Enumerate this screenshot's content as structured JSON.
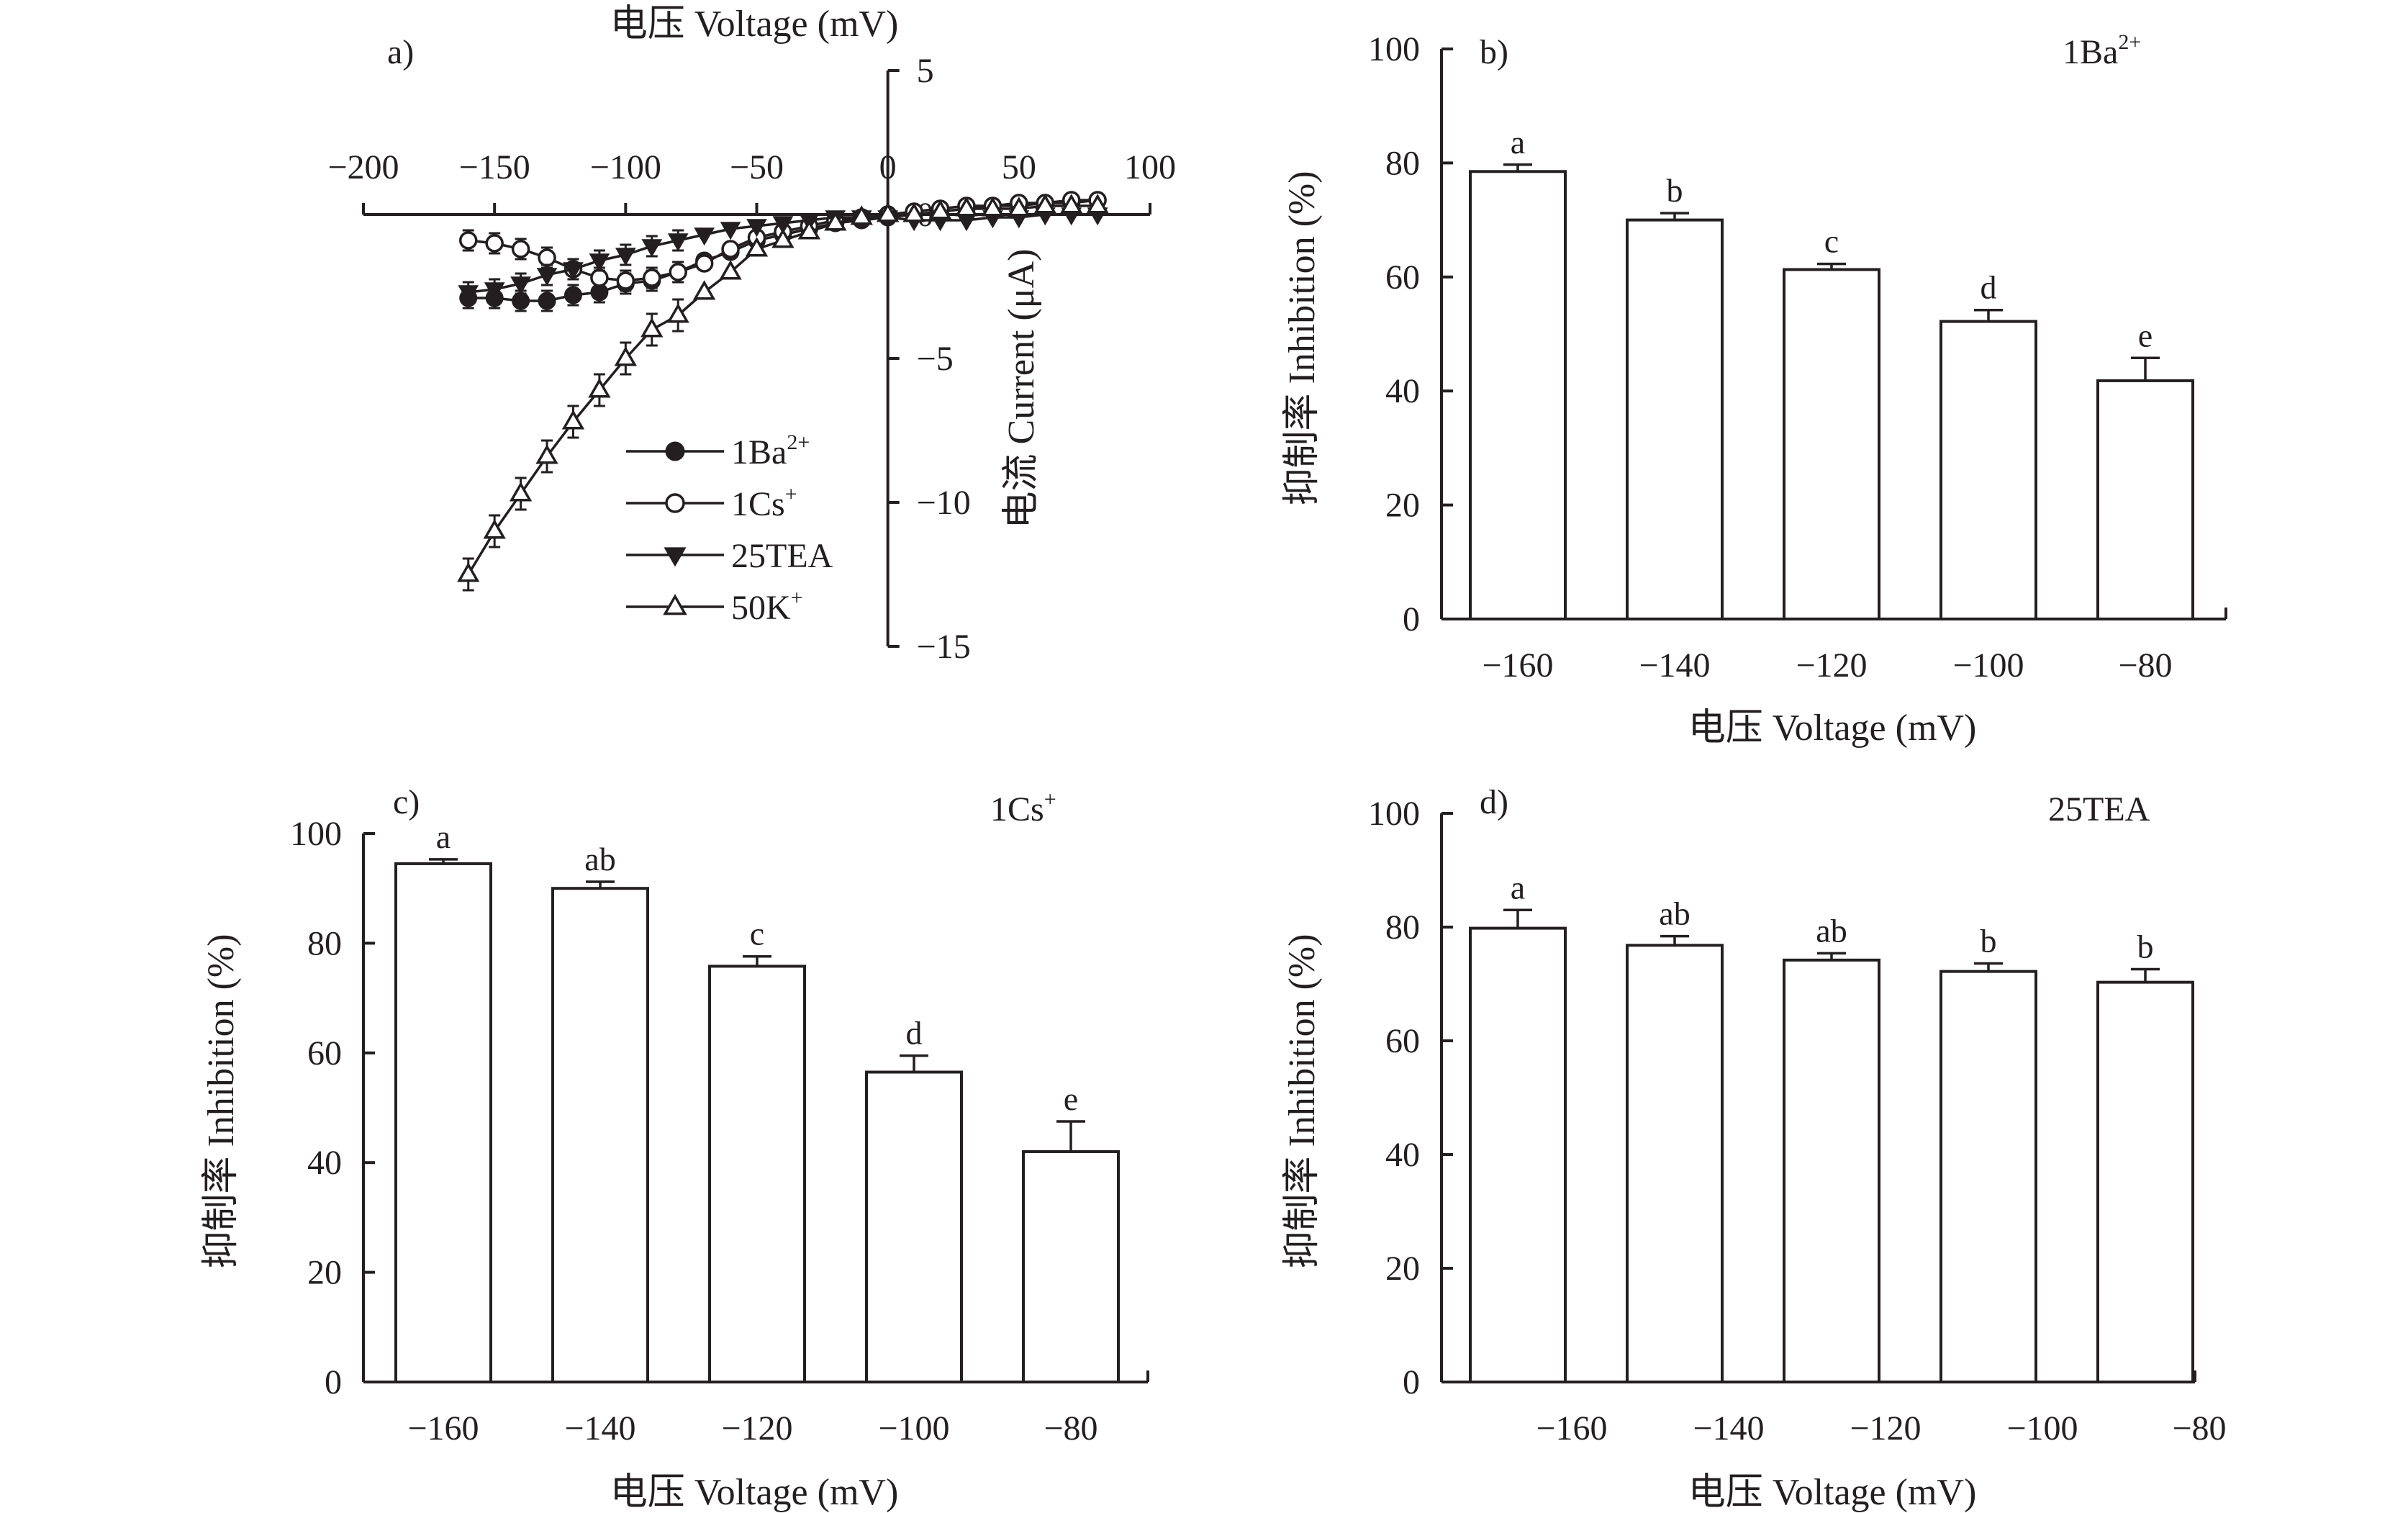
{
  "chart_data": [
    {
      "panel": "a)",
      "type": "line",
      "xlabel": "电压 Voltage (mV)",
      "ylabel": "电流 Current (μA)",
      "xlim": [
        -200,
        100
      ],
      "ylim": [
        -15,
        5
      ],
      "xticks": [
        "−200",
        "−150",
        "−100",
        "−50",
        "0",
        "50",
        "100"
      ],
      "yticks": [
        "5",
        "0",
        "−5",
        "−10",
        "−15"
      ],
      "x": [
        -160,
        -150,
        -140,
        -130,
        -120,
        -110,
        -100,
        -90,
        -80,
        -70,
        -60,
        -50,
        -40,
        -30,
        -20,
        -10,
        0,
        10,
        20,
        30,
        40,
        50,
        60,
        70,
        80
      ],
      "series": [
        {
          "name": "1Ba2+",
          "label_text": "1Ba",
          "label_sup": "2+",
          "marker": "filled-circle",
          "values": [
            -2.9,
            -2.9,
            -3.0,
            -3.0,
            -2.8,
            -2.7,
            -2.4,
            -2.3,
            -2.0,
            -1.6,
            -1.3,
            -0.9,
            -0.7,
            -0.5,
            -0.3,
            -0.2,
            -0.1,
            0.0,
            0.1,
            0.2,
            0.3,
            0.3,
            0.4,
            0.4,
            0.5
          ]
        },
        {
          "name": "1Cs+",
          "label_text": "1Cs",
          "label_sup": "+",
          "marker": "open-circle",
          "values": [
            -0.9,
            -1.0,
            -1.2,
            -1.5,
            -1.9,
            -2.2,
            -2.3,
            -2.2,
            -2.0,
            -1.7,
            -1.2,
            -0.8,
            -0.6,
            -0.4,
            -0.2,
            -0.1,
            0.0,
            0.1,
            0.2,
            0.3,
            0.3,
            0.4,
            0.4,
            0.5,
            0.5
          ]
        },
        {
          "name": "25TEA",
          "label_text": "25TEA",
          "label_sup": "",
          "marker": "filled-triangle-down",
          "values": [
            -2.7,
            -2.6,
            -2.4,
            -2.1,
            -1.9,
            -1.6,
            -1.4,
            -1.1,
            -0.9,
            -0.7,
            -0.5,
            -0.4,
            -0.3,
            -0.2,
            -0.1,
            -0.1,
            -0.1,
            -0.2,
            -0.2,
            -0.2,
            -0.1,
            -0.1,
            0.0,
            0.0,
            0.0
          ]
        },
        {
          "name": "50K+",
          "label_text": "50K",
          "label_sup": "+",
          "marker": "open-triangle-up",
          "values": [
            -12.5,
            -11.0,
            -9.7,
            -8.4,
            -7.2,
            -6.1,
            -5.0,
            -4.0,
            -3.5,
            -2.7,
            -2.0,
            -1.2,
            -0.9,
            -0.6,
            -0.3,
            -0.1,
            0.0,
            0.0,
            0.1,
            0.2,
            0.2,
            0.2,
            0.3,
            0.3,
            0.3
          ]
        }
      ]
    },
    {
      "panel": "b)",
      "type": "bar",
      "annotation": "1Ba",
      "annotation_sup": "2+",
      "xlabel": "电压 Voltage (mV)",
      "ylabel": "抑制率 Inhibition (%)",
      "ylim": [
        0,
        100
      ],
      "yticks": [
        "0",
        "20",
        "40",
        "60",
        "80",
        "100"
      ],
      "categories": [
        "−160",
        "−140",
        "−120",
        "−100",
        "−80"
      ],
      "values": [
        78.5,
        70.0,
        61.3,
        52.2,
        41.8
      ],
      "errors": [
        1.2,
        1.2,
        1.0,
        2.0,
        4.0
      ],
      "letters": [
        "a",
        "b",
        "c",
        "d",
        "e"
      ]
    },
    {
      "panel": "c)",
      "type": "bar",
      "annotation": "1Cs",
      "annotation_sup": "+",
      "xlabel": "电压 Voltage (mV)",
      "ylabel": "抑制率 Inhibition (%)",
      "ylim": [
        0,
        100
      ],
      "yticks": [
        "0",
        "20",
        "40",
        "60",
        "80",
        "100"
      ],
      "categories": [
        "−160",
        "−140",
        "−120",
        "−100",
        "−80"
      ],
      "values": [
        94.5,
        90.0,
        75.8,
        56.5,
        42.0
      ],
      "errors": [
        0.8,
        1.2,
        1.8,
        3.0,
        5.5
      ],
      "letters": [
        "a",
        "ab",
        "c",
        "d",
        "e"
      ]
    },
    {
      "panel": "d)",
      "type": "bar",
      "annotation": "25TEA",
      "annotation_sup": "",
      "xlabel": "电压 Voltage (mV)",
      "ylabel": "抑制率 Inhibition (%)",
      "ylim": [
        0,
        100
      ],
      "yticks": [
        "0",
        "20",
        "40",
        "60",
        "80",
        "100"
      ],
      "categories": [
        "−160",
        "−140",
        "−120",
        "−100",
        "−80"
      ],
      "values": [
        79.8,
        76.8,
        74.2,
        72.2,
        70.3
      ],
      "errors": [
        3.2,
        1.6,
        1.2,
        1.4,
        2.3
      ],
      "letters": [
        "a",
        "ab",
        "ab",
        "b",
        "b"
      ]
    }
  ]
}
